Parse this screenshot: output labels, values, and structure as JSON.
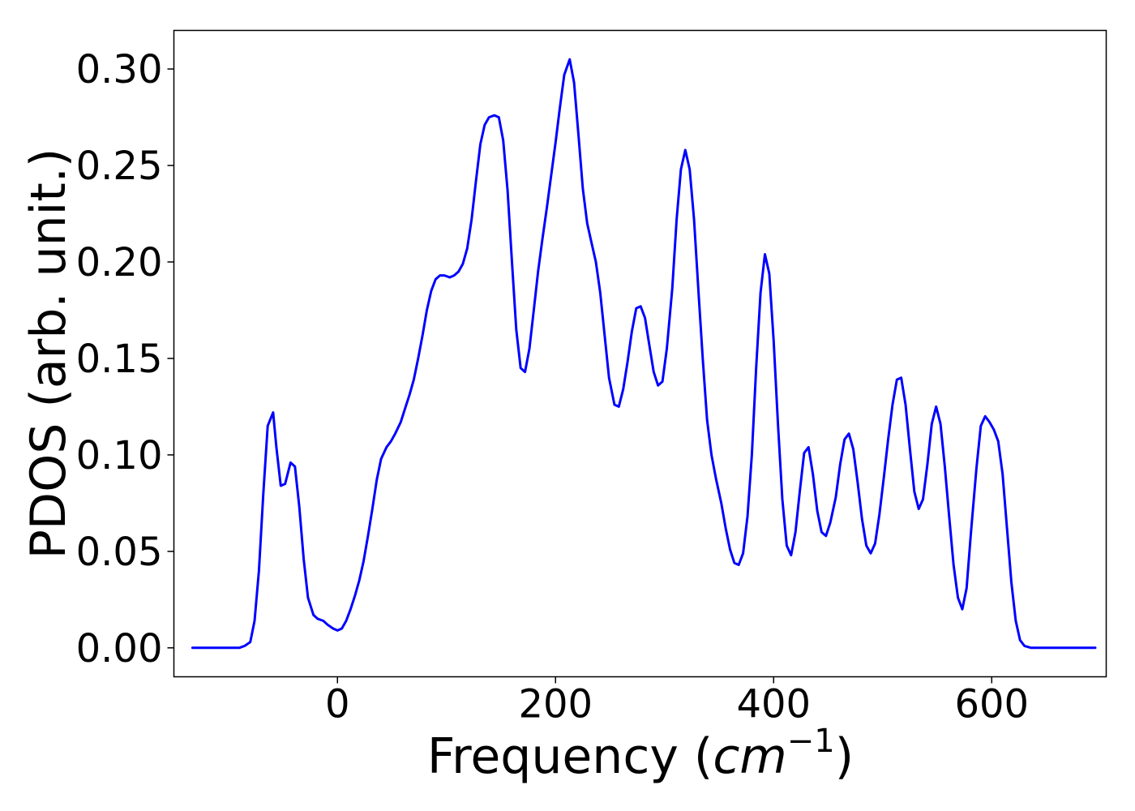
{
  "chart_data": {
    "type": "line",
    "title": "",
    "xlabel_text": "Frequency (",
    "xlabel_math": "cm",
    "xlabel_sup": "−1",
    "xlabel_close": ")",
    "ylabel": "PDOS (arb. unit.)",
    "xlim": [
      -150,
      705
    ],
    "ylim": [
      -0.015,
      0.32
    ],
    "x_ticks": [
      0,
      200,
      400,
      600
    ],
    "x_tick_labels": [
      "0",
      "200",
      "400",
      "600"
    ],
    "y_ticks": [
      0.0,
      0.05,
      0.1,
      0.15,
      0.2,
      0.25,
      0.3
    ],
    "y_tick_labels": [
      "0.00",
      "0.05",
      "0.10",
      "0.15",
      "0.20",
      "0.25",
      "0.30"
    ],
    "grid": false,
    "legend": "none",
    "series": [
      {
        "color": "#0000ff",
        "points": [
          [
            -133,
            0.0
          ],
          [
            -90,
            0.0
          ],
          [
            -85,
            0.001
          ],
          [
            -80,
            0.003
          ],
          [
            -76,
            0.014
          ],
          [
            -72,
            0.04
          ],
          [
            -68,
            0.08
          ],
          [
            -64,
            0.115
          ],
          [
            -59,
            0.122
          ],
          [
            -56,
            0.104
          ],
          [
            -52,
            0.084
          ],
          [
            -48,
            0.085
          ],
          [
            -43,
            0.096
          ],
          [
            -39,
            0.094
          ],
          [
            -35,
            0.073
          ],
          [
            -31,
            0.046
          ],
          [
            -27,
            0.026
          ],
          [
            -22,
            0.017
          ],
          [
            -18,
            0.015
          ],
          [
            -13,
            0.014
          ],
          [
            -9,
            0.012
          ],
          [
            -4,
            0.01
          ],
          [
            0,
            0.009
          ],
          [
            4,
            0.01
          ],
          [
            8,
            0.014
          ],
          [
            12,
            0.02
          ],
          [
            16,
            0.027
          ],
          [
            20,
            0.035
          ],
          [
            24,
            0.045
          ],
          [
            28,
            0.058
          ],
          [
            32,
            0.072
          ],
          [
            36,
            0.087
          ],
          [
            40,
            0.098
          ],
          [
            45,
            0.104
          ],
          [
            49,
            0.107
          ],
          [
            53,
            0.111
          ],
          [
            58,
            0.117
          ],
          [
            62,
            0.124
          ],
          [
            66,
            0.131
          ],
          [
            70,
            0.139
          ],
          [
            74,
            0.15
          ],
          [
            78,
            0.162
          ],
          [
            82,
            0.175
          ],
          [
            86,
            0.185
          ],
          [
            90,
            0.191
          ],
          [
            94,
            0.193
          ],
          [
            98,
            0.193
          ],
          [
            103,
            0.192
          ],
          [
            107,
            0.193
          ],
          [
            111,
            0.195
          ],
          [
            115,
            0.199
          ],
          [
            119,
            0.207
          ],
          [
            123,
            0.222
          ],
          [
            127,
            0.242
          ],
          [
            131,
            0.261
          ],
          [
            135,
            0.271
          ],
          [
            139,
            0.275
          ],
          [
            144,
            0.276
          ],
          [
            148,
            0.275
          ],
          [
            152,
            0.263
          ],
          [
            156,
            0.237
          ],
          [
            160,
            0.2
          ],
          [
            164,
            0.165
          ],
          [
            168,
            0.145
          ],
          [
            172,
            0.143
          ],
          [
            176,
            0.155
          ],
          [
            180,
            0.175
          ],
          [
            184,
            0.195
          ],
          [
            188,
            0.212
          ],
          [
            192,
            0.228
          ],
          [
            196,
            0.245
          ],
          [
            200,
            0.262
          ],
          [
            204,
            0.28
          ],
          [
            208,
            0.297
          ],
          [
            213,
            0.305
          ],
          [
            217,
            0.293
          ],
          [
            221,
            0.266
          ],
          [
            225,
            0.238
          ],
          [
            229,
            0.22
          ],
          [
            233,
            0.21
          ],
          [
            237,
            0.2
          ],
          [
            241,
            0.184
          ],
          [
            245,
            0.162
          ],
          [
            249,
            0.14
          ],
          [
            254,
            0.126
          ],
          [
            258,
            0.125
          ],
          [
            262,
            0.134
          ],
          [
            266,
            0.148
          ],
          [
            270,
            0.164
          ],
          [
            274,
            0.176
          ],
          [
            278,
            0.177
          ],
          [
            282,
            0.171
          ],
          [
            286,
            0.157
          ],
          [
            290,
            0.143
          ],
          [
            294,
            0.136
          ],
          [
            298,
            0.138
          ],
          [
            302,
            0.155
          ],
          [
            307,
            0.186
          ],
          [
            311,
            0.222
          ],
          [
            315,
            0.248
          ],
          [
            319,
            0.258
          ],
          [
            323,
            0.248
          ],
          [
            327,
            0.222
          ],
          [
            331,
            0.185
          ],
          [
            335,
            0.15
          ],
          [
            339,
            0.118
          ],
          [
            343,
            0.1
          ],
          [
            347,
            0.088
          ],
          [
            352,
            0.075
          ],
          [
            356,
            0.062
          ],
          [
            360,
            0.051
          ],
          [
            364,
            0.044
          ],
          [
            368,
            0.043
          ],
          [
            372,
            0.049
          ],
          [
            376,
            0.068
          ],
          [
            380,
            0.1
          ],
          [
            384,
            0.145
          ],
          [
            388,
            0.184
          ],
          [
            392,
            0.204
          ],
          [
            396,
            0.194
          ],
          [
            400,
            0.159
          ],
          [
            404,
            0.116
          ],
          [
            408,
            0.077
          ],
          [
            412,
            0.053
          ],
          [
            416,
            0.048
          ],
          [
            420,
            0.06
          ],
          [
            424,
            0.081
          ],
          [
            428,
            0.101
          ],
          [
            432,
            0.104
          ],
          [
            436,
            0.09
          ],
          [
            440,
            0.071
          ],
          [
            444,
            0.06
          ],
          [
            448,
            0.058
          ],
          [
            452,
            0.065
          ],
          [
            457,
            0.078
          ],
          [
            461,
            0.095
          ],
          [
            465,
            0.108
          ],
          [
            469,
            0.111
          ],
          [
            473,
            0.103
          ],
          [
            477,
            0.086
          ],
          [
            481,
            0.067
          ],
          [
            485,
            0.053
          ],
          [
            489,
            0.049
          ],
          [
            493,
            0.054
          ],
          [
            497,
            0.069
          ],
          [
            501,
            0.088
          ],
          [
            505,
            0.108
          ],
          [
            509,
            0.126
          ],
          [
            513,
            0.139
          ],
          [
            517,
            0.14
          ],
          [
            521,
            0.126
          ],
          [
            525,
            0.103
          ],
          [
            529,
            0.081
          ],
          [
            533,
            0.072
          ],
          [
            537,
            0.077
          ],
          [
            541,
            0.095
          ],
          [
            545,
            0.116
          ],
          [
            549,
            0.125
          ],
          [
            553,
            0.116
          ],
          [
            557,
            0.094
          ],
          [
            561,
            0.068
          ],
          [
            565,
            0.043
          ],
          [
            569,
            0.026
          ],
          [
            573,
            0.02
          ],
          [
            577,
            0.031
          ],
          [
            581,
            0.06
          ],
          [
            586,
            0.093
          ],
          [
            590,
            0.115
          ],
          [
            594,
            0.12
          ],
          [
            598,
            0.117
          ],
          [
            602,
            0.113
          ],
          [
            606,
            0.107
          ],
          [
            610,
            0.09
          ],
          [
            614,
            0.062
          ],
          [
            618,
            0.034
          ],
          [
            622,
            0.014
          ],
          [
            626,
            0.004
          ],
          [
            630,
            0.001
          ],
          [
            636,
            0.0
          ],
          [
            695,
            0.0
          ]
        ]
      }
    ]
  }
}
